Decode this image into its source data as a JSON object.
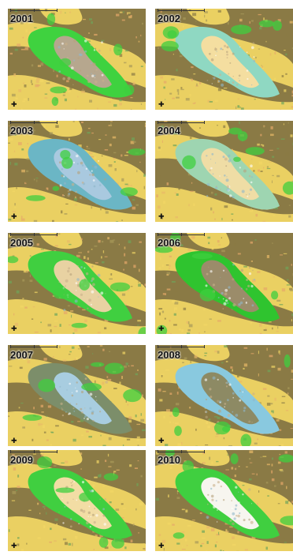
{
  "panels": [
    {
      "year": "2001",
      "core": "#b6a78e",
      "ring": "#3fd23f",
      "bg": "#f2d765"
    },
    {
      "year": "2002",
      "core": "#f4dea0",
      "ring": "#8fd8c2",
      "bg": "#f2d765"
    },
    {
      "year": "2003",
      "core": "#a9c9df",
      "ring": "#6bb6c5",
      "bg": "#f2d765"
    },
    {
      "year": "2004",
      "core": "#efdda5",
      "ring": "#9ed5b1",
      "bg": "#f2d765"
    },
    {
      "year": "2005",
      "core": "#e8d2a2",
      "ring": "#40cf40",
      "bg": "#f2d765"
    },
    {
      "year": "2006",
      "core": "#9b8c6a",
      "ring": "#2fc42f",
      "bg": "#f2d765"
    },
    {
      "year": "2007",
      "core": "#a8cde0",
      "ring": "#7c8e6a",
      "bg": "#f2d765"
    },
    {
      "year": "2008",
      "core": "#8d8a64",
      "ring": "#89c9df",
      "bg": "#f2d765"
    },
    {
      "year": "2009",
      "core": "#f2dda4",
      "ring": "#40cf40",
      "bg": "#f2d765"
    },
    {
      "year": "2010",
      "core": "#f7f5ef",
      "ring": "#40cf40",
      "bg": "#f2d765"
    }
  ]
}
